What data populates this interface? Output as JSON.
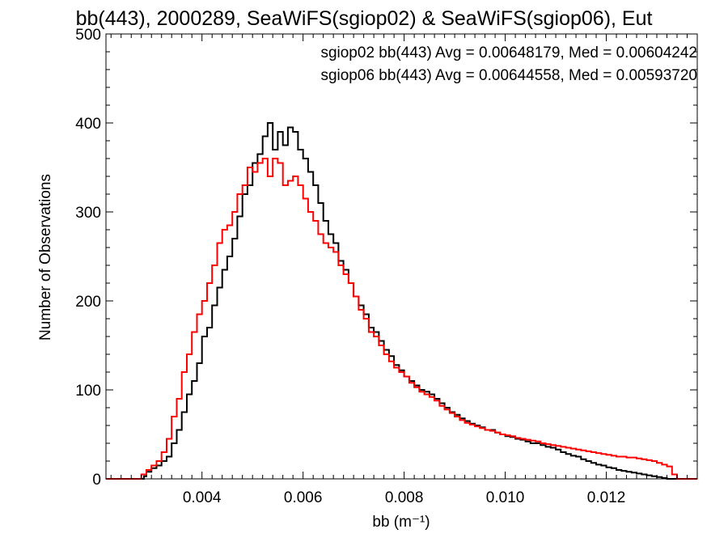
{
  "chart_data": {
    "type": "histogram-step",
    "title": "bb(443), 2000289, SeaWiFS(sgiop02) & SeaWiFS(sgiop06), Eut",
    "xlabel": "bb (m⁻¹)",
    "ylabel": "Number of Observations",
    "xlim": [
      0.0021,
      0.0138
    ],
    "ylim": [
      0,
      500
    ],
    "xticks": [
      0.004,
      0.006,
      0.008,
      0.01,
      0.012
    ],
    "xtick_labels": [
      "0.004",
      "0.006",
      "0.008",
      "0.010",
      "0.012"
    ],
    "yticks": [
      0,
      100,
      200,
      300,
      400,
      500
    ],
    "ytick_labels": [
      "0",
      "100",
      "200",
      "300",
      "400",
      "500"
    ],
    "grid": false,
    "annotations": [
      {
        "text": "sgiop02 bb(443) Avg = 0.00648179, Med = 0.00604242",
        "color": "#000000"
      },
      {
        "text": "sgiop06 bb(443) Avg = 0.00644558, Med = 0.00593720",
        "color": "#ff0000"
      }
    ],
    "series": [
      {
        "name": "sgiop02",
        "color": "#000000",
        "points": [
          [
            0.0021,
            0
          ],
          [
            0.00275,
            0
          ],
          [
            0.00285,
            3
          ],
          [
            0.0029,
            8
          ],
          [
            0.003,
            12
          ],
          [
            0.0031,
            15
          ],
          [
            0.0032,
            20
          ],
          [
            0.0033,
            25
          ],
          [
            0.0034,
            40
          ],
          [
            0.0035,
            55
          ],
          [
            0.0036,
            75
          ],
          [
            0.0037,
            95
          ],
          [
            0.0038,
            110
          ],
          [
            0.0039,
            130
          ],
          [
            0.004,
            160
          ],
          [
            0.0041,
            170
          ],
          [
            0.0042,
            195
          ],
          [
            0.0043,
            215
          ],
          [
            0.0044,
            235
          ],
          [
            0.0045,
            250
          ],
          [
            0.0046,
            270
          ],
          [
            0.0047,
            295
          ],
          [
            0.0048,
            320
          ],
          [
            0.0049,
            330
          ],
          [
            0.005,
            355
          ],
          [
            0.0051,
            365
          ],
          [
            0.0052,
            385
          ],
          [
            0.0053,
            400
          ],
          [
            0.0054,
            370
          ],
          [
            0.0055,
            390
          ],
          [
            0.0056,
            375
          ],
          [
            0.0057,
            395
          ],
          [
            0.0058,
            390
          ],
          [
            0.0059,
            370
          ],
          [
            0.006,
            360
          ],
          [
            0.0061,
            345
          ],
          [
            0.0062,
            330
          ],
          [
            0.0063,
            310
          ],
          [
            0.0064,
            290
          ],
          [
            0.0065,
            275
          ],
          [
            0.0066,
            265
          ],
          [
            0.0067,
            245
          ],
          [
            0.0068,
            235
          ],
          [
            0.0069,
            220
          ],
          [
            0.007,
            205
          ],
          [
            0.0071,
            195
          ],
          [
            0.0072,
            185
          ],
          [
            0.0073,
            170
          ],
          [
            0.0074,
            165
          ],
          [
            0.0075,
            155
          ],
          [
            0.0076,
            145
          ],
          [
            0.0077,
            138
          ],
          [
            0.0078,
            128
          ],
          [
            0.0079,
            122
          ],
          [
            0.008,
            115
          ],
          [
            0.0081,
            110
          ],
          [
            0.0082,
            105
          ],
          [
            0.0083,
            100
          ],
          [
            0.0084,
            98
          ],
          [
            0.0085,
            95
          ],
          [
            0.0086,
            90
          ],
          [
            0.0087,
            85
          ],
          [
            0.0088,
            80
          ],
          [
            0.0089,
            75
          ],
          [
            0.009,
            72
          ],
          [
            0.0091,
            68
          ],
          [
            0.0092,
            65
          ],
          [
            0.0093,
            62
          ],
          [
            0.0094,
            60
          ],
          [
            0.0095,
            58
          ],
          [
            0.0096,
            55
          ],
          [
            0.0097,
            55
          ],
          [
            0.0098,
            52
          ],
          [
            0.0099,
            50
          ],
          [
            0.01,
            48
          ],
          [
            0.0101,
            47
          ],
          [
            0.0102,
            45
          ],
          [
            0.0103,
            44
          ],
          [
            0.0104,
            42
          ],
          [
            0.0105,
            40
          ],
          [
            0.0106,
            40
          ],
          [
            0.0107,
            38
          ],
          [
            0.0108,
            36
          ],
          [
            0.0109,
            35
          ],
          [
            0.011,
            33
          ],
          [
            0.0111,
            30
          ],
          [
            0.0112,
            28
          ],
          [
            0.0113,
            26
          ],
          [
            0.0114,
            25
          ],
          [
            0.0115,
            22
          ],
          [
            0.0116,
            20
          ],
          [
            0.0117,
            18
          ],
          [
            0.0118,
            16
          ],
          [
            0.0119,
            15
          ],
          [
            0.012,
            13
          ],
          [
            0.0121,
            12
          ],
          [
            0.0122,
            10
          ],
          [
            0.0123,
            9
          ],
          [
            0.0124,
            8
          ],
          [
            0.0125,
            7
          ],
          [
            0.0126,
            6
          ],
          [
            0.0127,
            5
          ],
          [
            0.0128,
            4
          ],
          [
            0.0129,
            3
          ],
          [
            0.013,
            2
          ],
          [
            0.0131,
            1
          ],
          [
            0.0132,
            0
          ],
          [
            0.0138,
            0
          ]
        ]
      },
      {
        "name": "sgiop06",
        "color": "#ff0000",
        "points": [
          [
            0.0021,
            0
          ],
          [
            0.00272,
            0
          ],
          [
            0.0028,
            5
          ],
          [
            0.0029,
            10
          ],
          [
            0.003,
            15
          ],
          [
            0.0031,
            20
          ],
          [
            0.0032,
            30
          ],
          [
            0.0033,
            45
          ],
          [
            0.0034,
            70
          ],
          [
            0.0035,
            90
          ],
          [
            0.0036,
            120
          ],
          [
            0.0037,
            140
          ],
          [
            0.0038,
            165
          ],
          [
            0.0039,
            185
          ],
          [
            0.004,
            200
          ],
          [
            0.0041,
            220
          ],
          [
            0.0042,
            240
          ],
          [
            0.0043,
            265
          ],
          [
            0.0044,
            280
          ],
          [
            0.0045,
            285
          ],
          [
            0.0046,
            300
          ],
          [
            0.0047,
            320
          ],
          [
            0.0048,
            330
          ],
          [
            0.0049,
            350
          ],
          [
            0.005,
            345
          ],
          [
            0.0051,
            355
          ],
          [
            0.0052,
            360
          ],
          [
            0.0053,
            340
          ],
          [
            0.0054,
            360
          ],
          [
            0.0055,
            355
          ],
          [
            0.0056,
            330
          ],
          [
            0.0057,
            335
          ],
          [
            0.0058,
            340
          ],
          [
            0.0059,
            330
          ],
          [
            0.006,
            315
          ],
          [
            0.0061,
            300
          ],
          [
            0.0062,
            290
          ],
          [
            0.0063,
            275
          ],
          [
            0.0064,
            265
          ],
          [
            0.0065,
            260
          ],
          [
            0.0066,
            255
          ],
          [
            0.0067,
            240
          ],
          [
            0.0068,
            230
          ],
          [
            0.0069,
            220
          ],
          [
            0.007,
            205
          ],
          [
            0.0071,
            190
          ],
          [
            0.0072,
            180
          ],
          [
            0.0073,
            165
          ],
          [
            0.0074,
            160
          ],
          [
            0.0075,
            150
          ],
          [
            0.0076,
            140
          ],
          [
            0.0077,
            132
          ],
          [
            0.0078,
            125
          ],
          [
            0.0079,
            120
          ],
          [
            0.008,
            115
          ],
          [
            0.0081,
            108
          ],
          [
            0.0082,
            103
          ],
          [
            0.0083,
            98
          ],
          [
            0.0084,
            95
          ],
          [
            0.0085,
            92
          ],
          [
            0.0086,
            88
          ],
          [
            0.0087,
            82
          ],
          [
            0.0088,
            78
          ],
          [
            0.0089,
            74
          ],
          [
            0.009,
            70
          ],
          [
            0.0091,
            66
          ],
          [
            0.0092,
            63
          ],
          [
            0.0093,
            61
          ],
          [
            0.0094,
            59
          ],
          [
            0.0095,
            57
          ],
          [
            0.0096,
            55
          ],
          [
            0.0097,
            54
          ],
          [
            0.0098,
            52
          ],
          [
            0.0099,
            50
          ],
          [
            0.01,
            49
          ],
          [
            0.0101,
            48
          ],
          [
            0.0102,
            46
          ],
          [
            0.0103,
            45
          ],
          [
            0.0104,
            44
          ],
          [
            0.0105,
            43
          ],
          [
            0.0106,
            42
          ],
          [
            0.0107,
            40
          ],
          [
            0.0108,
            39
          ],
          [
            0.0109,
            38
          ],
          [
            0.011,
            37
          ],
          [
            0.0111,
            36
          ],
          [
            0.0112,
            35
          ],
          [
            0.0113,
            34
          ],
          [
            0.0114,
            33
          ],
          [
            0.0115,
            32
          ],
          [
            0.0116,
            31
          ],
          [
            0.0117,
            30
          ],
          [
            0.0118,
            29
          ],
          [
            0.0119,
            28
          ],
          [
            0.012,
            27
          ],
          [
            0.0121,
            26
          ],
          [
            0.0122,
            25
          ],
          [
            0.0123,
            25
          ],
          [
            0.0124,
            24
          ],
          [
            0.0125,
            24
          ],
          [
            0.0126,
            23
          ],
          [
            0.0127,
            22
          ],
          [
            0.0128,
            21
          ],
          [
            0.0129,
            20
          ],
          [
            0.013,
            18
          ],
          [
            0.0131,
            16
          ],
          [
            0.0132,
            14
          ],
          [
            0.0133,
            5
          ],
          [
            0.0134,
            0
          ],
          [
            0.0138,
            0
          ]
        ]
      }
    ]
  }
}
